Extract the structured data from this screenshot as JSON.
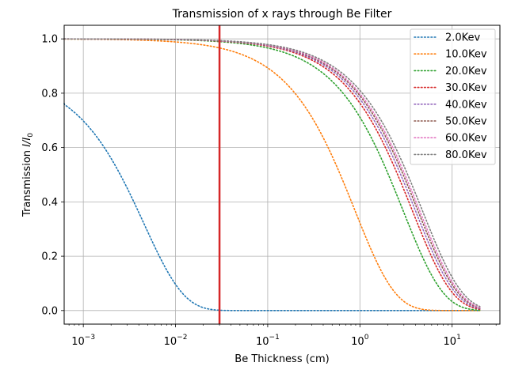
{
  "chart_data": {
    "type": "line",
    "title": "Transmission of x rays through Be Filter",
    "xlabel": "Be Thickness (cm)",
    "ylabel_main": "Transmission ",
    "ylabel_math": "I/I",
    "ylabel_sub": "0",
    "xscale": "log",
    "xlim": [
      0.00062,
      33
    ],
    "ylim": [
      -0.05,
      1.05
    ],
    "grid": true,
    "legend_placement": "top-right",
    "x_tick_labels": [
      {
        "value": 0.001,
        "base": "10",
        "exp": "−3"
      },
      {
        "value": 0.01,
        "base": "10",
        "exp": "−2"
      },
      {
        "value": 0.1,
        "base": "10",
        "exp": "−1"
      },
      {
        "value": 1,
        "base": "10",
        "exp": "0"
      },
      {
        "value": 10,
        "base": "10",
        "exp": "1"
      }
    ],
    "y_ticks": [
      0.0,
      0.2,
      0.4,
      0.6,
      0.8,
      1.0
    ],
    "y_tick_labels": [
      "0.0",
      "0.2",
      "0.4",
      "0.6",
      "0.8",
      "1.0"
    ],
    "vertical_line": {
      "x": 0.03,
      "color": "#d62728"
    },
    "x_start": 0.0006,
    "x_end": 20,
    "series": [
      {
        "name": "2.0Kev",
        "color": "#1f77b4",
        "mu": 220,
        "scale": 0.87
      },
      {
        "name": "10.0Kev",
        "color": "#ff7f0e",
        "mu": 1.13,
        "scale": 1.0
      },
      {
        "name": "20.0Kev",
        "color": "#2ca02c",
        "mu": 0.34,
        "scale": 1.0
      },
      {
        "name": "30.0Kev",
        "color": "#d62728",
        "mu": 0.27,
        "scale": 1.0
      },
      {
        "name": "40.0Kev",
        "color": "#9467bd",
        "mu": 0.25,
        "scale": 1.0
      },
      {
        "name": "50.0Kev",
        "color": "#8c564b",
        "mu": 0.235,
        "scale": 1.0
      },
      {
        "name": "60.0Kev",
        "color": "#e377c2",
        "mu": 0.225,
        "scale": 1.0
      },
      {
        "name": "80.0Kev",
        "color": "#7f7f7f",
        "mu": 0.21,
        "scale": 1.0
      }
    ]
  }
}
